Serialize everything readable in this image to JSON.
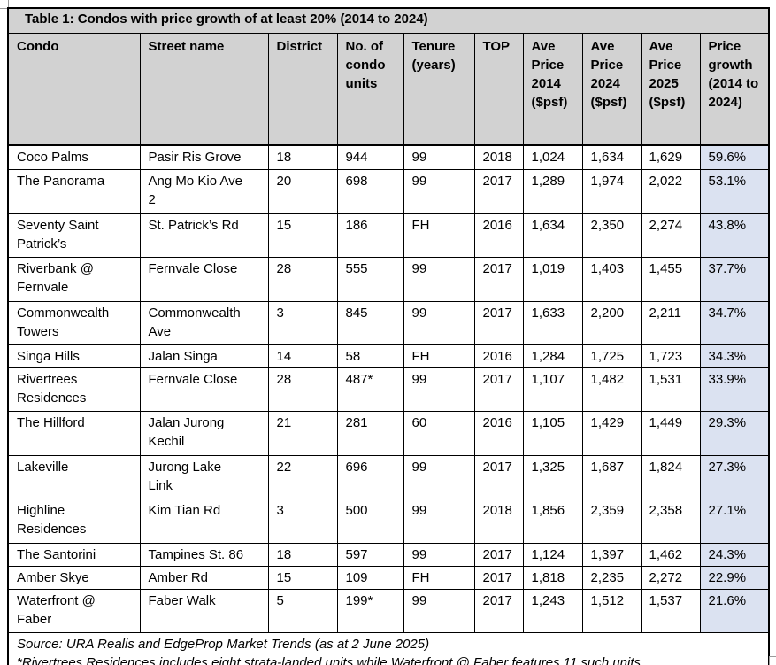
{
  "title": "Table 1: Condos with price growth of at least 20% (2014 to 2024)",
  "columns": [
    "Condo",
    "Street name",
    "District",
    "No. of condo units",
    "Tenure (years)",
    "TOP",
    "Ave Price 2014 ($psf)",
    "Ave Price 2024 ($psf)",
    "Ave Price 2025 ($psf)",
    "Price growth (2014 to 2024)"
  ],
  "rows": [
    {
      "condo": "Coco Palms",
      "street": "Pasir Ris Grove",
      "district": "18",
      "units": "944",
      "tenure": "99",
      "top": "2018",
      "price_2014": "1,024",
      "price_2024": "1,634",
      "price_2025": "1,629",
      "growth": "59.6%"
    },
    {
      "condo": "The Panorama",
      "street": "Ang Mo Kio Ave\n2",
      "district": "20",
      "units": "698",
      "tenure": "99",
      "top": "2017",
      "price_2014": "1,289",
      "price_2024": "1,974",
      "price_2025": "2,022",
      "growth": "53.1%"
    },
    {
      "condo": "Seventy Saint\nPatrick’s",
      "street": "St. Patrick’s Rd",
      "district": "15",
      "units": "186",
      "tenure": "FH",
      "top": "2016",
      "price_2014": "1,634",
      "price_2024": "2,350",
      "price_2025": "2,274",
      "growth": "43.8%"
    },
    {
      "condo": "Riverbank @\nFernvale",
      "street": "Fernvale Close",
      "district": "28",
      "units": "555",
      "tenure": "99",
      "top": "2017",
      "price_2014": "1,019",
      "price_2024": "1,403",
      "price_2025": "1,455",
      "growth": "37.7%"
    },
    {
      "condo": "Commonwealth\nTowers",
      "street": "Commonwealth\nAve",
      "district": "3",
      "units": "845",
      "tenure": "99",
      "top": "2017",
      "price_2014": "1,633",
      "price_2024": "2,200",
      "price_2025": "2,211",
      "growth": "34.7%"
    },
    {
      "condo": "Singa Hills",
      "street": "Jalan Singa",
      "district": "14",
      "units": "58",
      "tenure": "FH",
      "top": "2016",
      "price_2014": "1,284",
      "price_2024": "1,725",
      "price_2025": "1,723",
      "growth": "34.3%"
    },
    {
      "condo": "Rivertrees\nResidences",
      "street": "Fernvale Close",
      "district": "28",
      "units": "487*",
      "tenure": "99",
      "top": "2017",
      "price_2014": "1,107",
      "price_2024": "1,482",
      "price_2025": "1,531",
      "growth": "33.9%"
    },
    {
      "condo": "The Hillford",
      "street": "Jalan Jurong\nKechil",
      "district": "21",
      "units": "281",
      "tenure": "60",
      "top": "2016",
      "price_2014": "1,105",
      "price_2024": "1,429",
      "price_2025": "1,449",
      "growth": "29.3%"
    },
    {
      "condo": "Lakeville",
      "street": "Jurong Lake\nLink",
      "district": "22",
      "units": "696",
      "tenure": "99",
      "top": "2017",
      "price_2014": "1,325",
      "price_2024": "1,687",
      "price_2025": "1,824",
      "growth": "27.3%"
    },
    {
      "condo": "Highline\nResidences",
      "street": "Kim Tian Rd",
      "district": "3",
      "units": "500",
      "tenure": "99",
      "top": "2018",
      "price_2014": "1,856",
      "price_2024": "2,359",
      "price_2025": "2,358",
      "growth": "27.1%"
    },
    {
      "condo": "The Santorini",
      "street": "Tampines St. 86",
      "district": "18",
      "units": "597",
      "tenure": "99",
      "top": "2017",
      "price_2014": "1,124",
      "price_2024": "1,397",
      "price_2025": "1,462",
      "growth": "24.3%"
    },
    {
      "condo": "Amber Skye",
      "street": "Amber Rd",
      "district": "15",
      "units": "109",
      "tenure": "FH",
      "top": "2017",
      "price_2014": "1,818",
      "price_2024": "2,235",
      "price_2025": "2,272",
      "growth": "22.9%"
    },
    {
      "condo": "Waterfront @\nFaber",
      "street": "Faber Walk",
      "district": "5",
      "units": "199*",
      "tenure": "99",
      "top": "2017",
      "price_2014": "1,243",
      "price_2024": "1,512",
      "price_2025": "1,537",
      "growth": "21.6%"
    }
  ],
  "footer": {
    "source": "Source: URA Realis and EdgeProp Market Trends (as at 2 June 2025)",
    "note": "*Rivertrees Residences includes eight strata-landed units while Waterfront @ Faber features 11 such units."
  },
  "colors": {
    "header_bg": "#d2d2d2",
    "highlight_bg": "#dbe2f1",
    "border": "#000000"
  }
}
